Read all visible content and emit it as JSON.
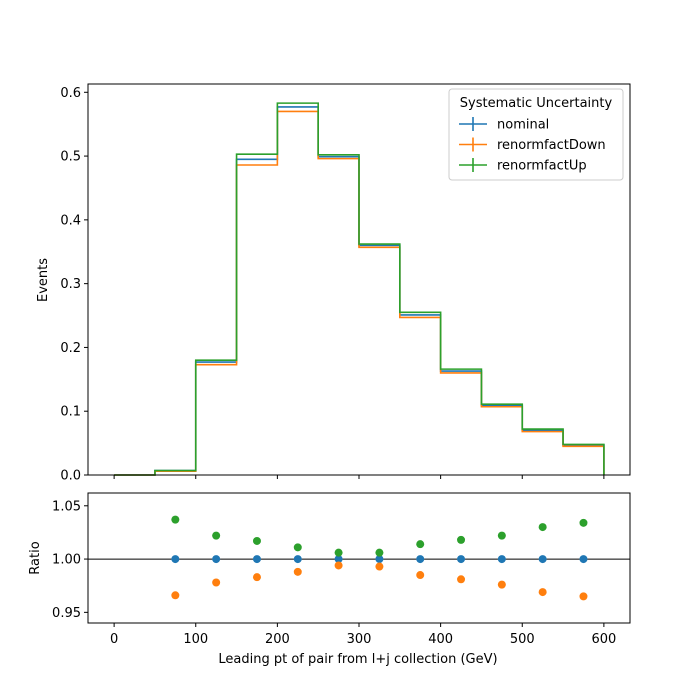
{
  "colors": {
    "nominal": "#1f77b4",
    "renormfactDown": "#ff7f0e",
    "renormfactUp": "#2ca02c",
    "axis": "#000000",
    "background": "#ffffff"
  },
  "chart_data": [
    {
      "type": "line",
      "style": "step-histogram",
      "bin_edges": [
        0,
        50,
        100,
        150,
        200,
        250,
        300,
        350,
        400,
        450,
        500,
        550,
        600
      ],
      "series": [
        {
          "name": "nominal",
          "values": [
            0.0,
            0.007,
            0.177,
            0.495,
            0.577,
            0.499,
            0.36,
            0.251,
            0.163,
            0.109,
            0.07,
            0.047
          ]
        },
        {
          "name": "renormfactDown",
          "values": [
            0.0,
            0.006,
            0.173,
            0.486,
            0.57,
            0.496,
            0.357,
            0.247,
            0.16,
            0.107,
            0.068,
            0.045
          ]
        },
        {
          "name": "renormfactUp",
          "values": [
            0.0,
            0.007,
            0.18,
            0.503,
            0.583,
            0.502,
            0.362,
            0.255,
            0.166,
            0.111,
            0.072,
            0.048
          ]
        }
      ],
      "xlabel": "",
      "ylabel": "Events",
      "xlim": [
        -32,
        632
      ],
      "ylim": [
        0,
        0.613
      ],
      "xticks": [
        0,
        100,
        200,
        300,
        400,
        500,
        600
      ],
      "yticks": [
        "0.0",
        "0.1",
        "0.2",
        "0.3",
        "0.4",
        "0.5",
        "0.6"
      ],
      "grid": false,
      "legend": {
        "title": "Systematic Uncertainty",
        "placement": "top-right",
        "entries": [
          "nominal",
          "renormfactDown",
          "renormfactUp"
        ]
      }
    },
    {
      "type": "scatter",
      "x": [
        75,
        125,
        175,
        225,
        275,
        325,
        375,
        425,
        475,
        525,
        575
      ],
      "series": [
        {
          "name": "nominal",
          "values": [
            1.0,
            1.0,
            1.0,
            1.0,
            1.0,
            1.0,
            1.0,
            1.0,
            1.0,
            1.0,
            1.0
          ]
        },
        {
          "name": "renormfactDown",
          "values": [
            0.966,
            0.978,
            0.983,
            0.988,
            0.994,
            0.993,
            0.985,
            0.981,
            0.976,
            0.969,
            0.965
          ]
        },
        {
          "name": "renormfactUp",
          "values": [
            1.037,
            1.022,
            1.017,
            1.011,
            1.006,
            1.006,
            1.014,
            1.018,
            1.022,
            1.03,
            1.034
          ]
        }
      ],
      "reference_line": 1.0,
      "xlabel": "Leading pt of pair from l+j collection (GeV)",
      "ylabel": "Ratio",
      "xlim": [
        -32,
        632
      ],
      "ylim": [
        0.94,
        1.062
      ],
      "xticks": [
        0,
        100,
        200,
        300,
        400,
        500,
        600
      ],
      "yticks": [
        "0.95",
        "1.00",
        "1.05"
      ],
      "grid": false
    }
  ]
}
